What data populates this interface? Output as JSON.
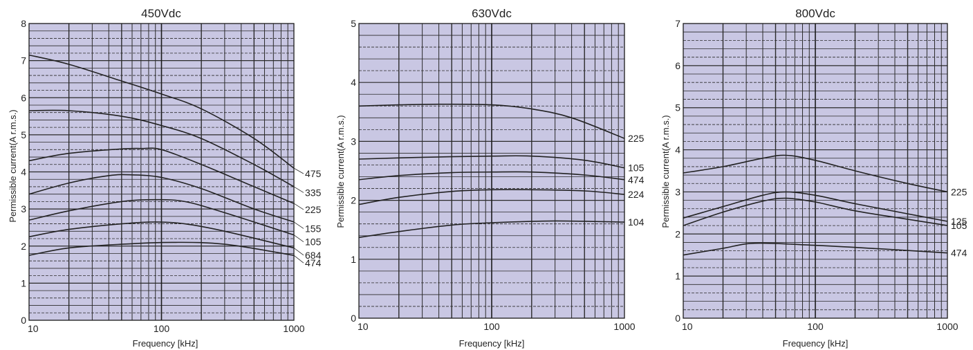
{
  "colors": {
    "plot_background": "#c9c7e3",
    "line": "#222222"
  },
  "chart_data": [
    {
      "type": "line",
      "title": "450Vdc",
      "xlabel": "Frequency [kHz]",
      "ylabel": "Permissible current(A r.m.s.)",
      "x_scale": "log",
      "xlim": [
        10,
        1000
      ],
      "ylim": [
        0,
        8
      ],
      "x_ticks": [
        "10",
        "100",
        "1000"
      ],
      "y_ticks": [
        "0",
        "1",
        "2",
        "3",
        "4",
        "5",
        "6",
        "7",
        "8"
      ],
      "grid": true,
      "series": [
        {
          "name": "475",
          "x": [
            10,
            20,
            50,
            100,
            200,
            500,
            1000
          ],
          "y": [
            7.15,
            6.9,
            6.45,
            6.1,
            5.7,
            4.9,
            4.1
          ]
        },
        {
          "name": "335",
          "x": [
            10,
            20,
            50,
            100,
            200,
            500,
            1000
          ],
          "y": [
            5.65,
            5.65,
            5.5,
            5.25,
            4.9,
            4.2,
            3.6
          ]
        },
        {
          "name": "225",
          "x": [
            10,
            20,
            50,
            70,
            100,
            200,
            500,
            1000
          ],
          "y": [
            4.3,
            4.5,
            4.62,
            4.63,
            4.6,
            4.2,
            3.6,
            3.15
          ]
        },
        {
          "name": "155",
          "x": [
            10,
            20,
            40,
            60,
            100,
            200,
            500,
            1000
          ],
          "y": [
            3.4,
            3.7,
            3.9,
            3.92,
            3.85,
            3.55,
            3.0,
            2.65
          ]
        },
        {
          "name": "105",
          "x": [
            10,
            20,
            50,
            90,
            150,
            300,
            1000
          ],
          "y": [
            2.7,
            2.95,
            3.2,
            3.25,
            3.2,
            2.9,
            2.3
          ]
        },
        {
          "name": "684",
          "x": [
            10,
            20,
            50,
            90,
            150,
            300,
            1000
          ],
          "y": [
            2.25,
            2.45,
            2.6,
            2.65,
            2.6,
            2.4,
            1.95
          ]
        },
        {
          "name": "474",
          "x": [
            10,
            20,
            50,
            120,
            300,
            1000
          ],
          "y": [
            1.75,
            1.95,
            2.05,
            2.1,
            2.05,
            1.75
          ]
        }
      ]
    },
    {
      "type": "line",
      "title": "630Vdc",
      "xlabel": "Frequency [kHz]",
      "ylabel": "Permissible current(A r.m.s.)",
      "x_scale": "log",
      "xlim": [
        10,
        1000
      ],
      "ylim": [
        0,
        5
      ],
      "x_ticks": [
        "10",
        "100",
        "1000"
      ],
      "y_ticks": [
        "0",
        "1",
        "2",
        "3",
        "4",
        "5"
      ],
      "grid": true,
      "series": [
        {
          "name": "225",
          "x": [
            10,
            20,
            40,
            100,
            200,
            400,
            1000
          ],
          "y": [
            3.6,
            3.62,
            3.63,
            3.62,
            3.55,
            3.4,
            3.05
          ]
        },
        {
          "name": "105",
          "x": [
            10,
            30,
            100,
            200,
            500,
            1000
          ],
          "y": [
            2.7,
            2.73,
            2.75,
            2.75,
            2.68,
            2.55
          ]
        },
        {
          "name": "474",
          "x": [
            10,
            20,
            50,
            100,
            200,
            500,
            1000
          ],
          "y": [
            2.35,
            2.42,
            2.47,
            2.48,
            2.48,
            2.43,
            2.35
          ]
        },
        {
          "name": "224",
          "x": [
            10,
            20,
            50,
            100,
            200,
            500,
            1000
          ],
          "y": [
            1.93,
            2.05,
            2.15,
            2.18,
            2.18,
            2.16,
            2.1
          ]
        },
        {
          "name": "104",
          "x": [
            10,
            20,
            50,
            100,
            300,
            1000
          ],
          "y": [
            1.37,
            1.47,
            1.58,
            1.62,
            1.65,
            1.63
          ]
        }
      ]
    },
    {
      "type": "line",
      "title": "800Vdc",
      "xlabel": "Frequency [kHz]",
      "ylabel": "Permissible current(A r.m.s.)",
      "x_scale": "log",
      "xlim": [
        10,
        1000
      ],
      "ylim": [
        0,
        7
      ],
      "x_ticks": [
        "10",
        "100",
        "1000"
      ],
      "y_ticks": [
        "0",
        "1",
        "2",
        "3",
        "4",
        "5",
        "6",
        "7"
      ],
      "grid": true,
      "series": [
        {
          "name": "225",
          "x": [
            10,
            20,
            40,
            60,
            100,
            200,
            500,
            1000
          ],
          "y": [
            3.45,
            3.6,
            3.8,
            3.87,
            3.75,
            3.5,
            3.2,
            3.0
          ]
        },
        {
          "name": "125",
          "x": [
            10,
            20,
            40,
            60,
            100,
            200,
            500,
            1000
          ],
          "y": [
            2.38,
            2.65,
            2.92,
            3.0,
            2.92,
            2.72,
            2.48,
            2.3
          ]
        },
        {
          "name": "105",
          "x": [
            10,
            20,
            40,
            60,
            100,
            200,
            500,
            1000
          ],
          "y": [
            2.2,
            2.52,
            2.78,
            2.85,
            2.76,
            2.55,
            2.35,
            2.2
          ]
        },
        {
          "name": "474",
          "x": [
            10,
            20,
            35,
            100,
            300,
            1000
          ],
          "y": [
            1.5,
            1.66,
            1.78,
            1.73,
            1.65,
            1.55
          ]
        }
      ]
    }
  ]
}
